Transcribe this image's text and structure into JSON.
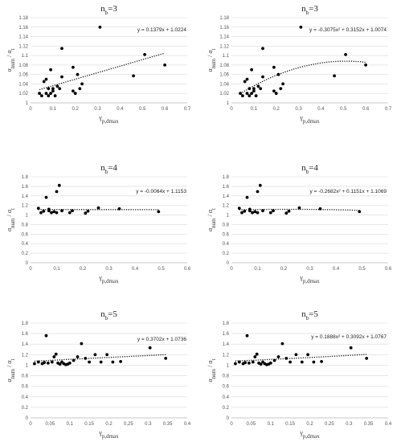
{
  "chart_data": [
    {
      "type": "scatter",
      "title": "n",
      "title_sub": "b",
      "title_rest": "=3",
      "xlabel": "γ",
      "xlabel_sub": "p,dmax",
      "ylabel": "α",
      "ylabel_sub": "num",
      "ylabel_mid": " / α",
      "ylabel_sub2": "t",
      "xlim": [
        0,
        0.7
      ],
      "ylim": [
        1.0,
        1.18
      ],
      "xticks": [
        "0",
        "0.1",
        "0.2",
        "0.3",
        "0.4",
        "0.5",
        "0.6",
        "0.7"
      ],
      "yticks": [
        "1",
        "1.02",
        "1.04",
        "1.06",
        "1.08",
        "1.1",
        "1.12",
        "1.14",
        "1.16",
        "1.18"
      ],
      "trendline": {
        "type": "linear",
        "coef": [
          0.1379,
          1.0224
        ],
        "equation": "y = 0.1379x + 1.0224"
      },
      "x": [
        0.04,
        0.05,
        0.06,
        0.07,
        0.07,
        0.08,
        0.08,
        0.09,
        0.09,
        0.1,
        0.1,
        0.11,
        0.12,
        0.13,
        0.14,
        0.14,
        0.19,
        0.19,
        0.2,
        0.21,
        0.22,
        0.23,
        0.31,
        0.46,
        0.51,
        0.6
      ],
      "y": [
        1.02,
        1.015,
        1.045,
        1.05,
        1.02,
        1.03,
        1.015,
        1.07,
        1.02,
        1.03,
        1.025,
        1.015,
        1.035,
        1.03,
        1.115,
        1.055,
        1.075,
        1.025,
        1.02,
        1.06,
        1.03,
        1.04,
        1.16,
        1.057,
        1.102,
        1.08
      ]
    },
    {
      "type": "scatter",
      "title": "n",
      "title_sub": "b",
      "title_rest": "=3",
      "xlabel": "γ",
      "xlabel_sub": "p,dmax",
      "ylabel": "α",
      "ylabel_sub": "num",
      "ylabel_mid": " / α",
      "ylabel_sub2": "t",
      "xlim": [
        0,
        0.7
      ],
      "ylim": [
        1.0,
        1.18
      ],
      "xticks": [
        "0",
        "0.1",
        "0.2",
        "0.3",
        "0.4",
        "0.5",
        "0.6",
        "0.7"
      ],
      "yticks": [
        "1",
        "1.02",
        "1.04",
        "1.06",
        "1.08",
        "1.1",
        "1.12",
        "1.14",
        "1.16",
        "1.18"
      ],
      "trendline": {
        "type": "poly2",
        "coef": [
          -0.3075,
          0.3152,
          1.0074
        ],
        "equation": "y = -0.3075x² + 0.3152x + 1.0074"
      },
      "x": [
        0.04,
        0.05,
        0.06,
        0.07,
        0.07,
        0.08,
        0.08,
        0.09,
        0.09,
        0.1,
        0.1,
        0.11,
        0.12,
        0.13,
        0.14,
        0.14,
        0.19,
        0.19,
        0.2,
        0.21,
        0.22,
        0.23,
        0.31,
        0.46,
        0.51,
        0.6
      ],
      "y": [
        1.02,
        1.015,
        1.045,
        1.05,
        1.02,
        1.03,
        1.015,
        1.07,
        1.02,
        1.03,
        1.025,
        1.015,
        1.035,
        1.03,
        1.115,
        1.055,
        1.075,
        1.025,
        1.02,
        1.06,
        1.03,
        1.04,
        1.16,
        1.057,
        1.102,
        1.08
      ]
    },
    {
      "type": "scatter",
      "title": "n",
      "title_sub": "b",
      "title_rest": "=4",
      "xlabel": "γ",
      "xlabel_sub": "p,dmax",
      "ylabel": "α",
      "ylabel_sub": "num",
      "ylabel_mid": " / α",
      "ylabel_sub2": "t",
      "xlim": [
        0,
        0.6
      ],
      "ylim": [
        0,
        1.8
      ],
      "xticks": [
        "0",
        "0.1",
        "0.2",
        "0.3",
        "0.4",
        "0.5",
        "0.6"
      ],
      "yticks": [
        "0",
        "0.2",
        "0.4",
        "0.6",
        "0.8",
        "1",
        "1.2",
        "1.4",
        "1.6",
        "1.8"
      ],
      "trendline": {
        "type": "linear",
        "coef": [
          -0.0064,
          1.1153
        ],
        "equation": "y = -0.0064x + 1.1153"
      },
      "x": [
        0.03,
        0.04,
        0.05,
        0.06,
        0.07,
        0.07,
        0.08,
        0.09,
        0.1,
        0.1,
        0.11,
        0.12,
        0.15,
        0.16,
        0.21,
        0.22,
        0.26,
        0.34,
        0.49
      ],
      "y": [
        1.14,
        1.05,
        1.08,
        1.37,
        1.09,
        1.12,
        1.05,
        1.07,
        1.49,
        1.05,
        1.62,
        1.09,
        1.05,
        1.09,
        1.04,
        1.08,
        1.15,
        1.13,
        1.07
      ]
    },
    {
      "type": "scatter",
      "title": "n",
      "title_sub": "b",
      "title_rest": "=4",
      "xlabel": "γ",
      "xlabel_sub": "p,dmax",
      "ylabel": "α",
      "ylabel_sub": "num",
      "ylabel_mid": " / α",
      "ylabel_sub2": "t",
      "xlim": [
        0,
        0.6
      ],
      "ylim": [
        0,
        1.8
      ],
      "xticks": [
        "0",
        "0.1",
        "0.2",
        "0.3",
        "0.4",
        "0.5",
        "0.6"
      ],
      "yticks": [
        "0",
        "0.2",
        "0.4",
        "0.6",
        "0.8",
        "1",
        "1.2",
        "1.4",
        "1.6",
        "1.8"
      ],
      "trendline": {
        "type": "poly2",
        "coef": [
          -0.2682,
          0.1151,
          1.1069
        ],
        "equation": "y = -0.2682x² + 0.1151x + 1.1069"
      },
      "x": [
        0.03,
        0.04,
        0.05,
        0.06,
        0.07,
        0.07,
        0.08,
        0.09,
        0.1,
        0.1,
        0.11,
        0.12,
        0.15,
        0.16,
        0.21,
        0.22,
        0.26,
        0.34,
        0.49
      ],
      "y": [
        1.14,
        1.05,
        1.08,
        1.37,
        1.09,
        1.12,
        1.05,
        1.07,
        1.49,
        1.05,
        1.62,
        1.09,
        1.05,
        1.09,
        1.04,
        1.08,
        1.15,
        1.13,
        1.07
      ]
    },
    {
      "type": "scatter",
      "title": "n",
      "title_sub": "b",
      "title_rest": "=5",
      "xlabel": "γ",
      "xlabel_sub": "p,dmax",
      "ylabel": "α",
      "ylabel_sub": "num",
      "ylabel_mid": " / α",
      "ylabel_sub2": "t",
      "xlim": [
        0,
        0.4
      ],
      "ylim": [
        0,
        1.8
      ],
      "xticks": [
        "0",
        "0.05",
        "0.1",
        "0.15",
        "0.2",
        "0.25",
        "0.3",
        "0.35",
        "0.4"
      ],
      "yticks": [
        "0",
        "0.2",
        "0.4",
        "0.6",
        "0.8",
        "1",
        "1.2",
        "1.4",
        "1.6",
        "1.8"
      ],
      "trendline": {
        "type": "linear",
        "coef": [
          0.3702,
          1.0736
        ],
        "equation": "y = 0.3702x + 1.0736"
      },
      "x": [
        0.01,
        0.02,
        0.03,
        0.035,
        0.04,
        0.045,
        0.055,
        0.06,
        0.065,
        0.07,
        0.075,
        0.08,
        0.085,
        0.09,
        0.095,
        0.1,
        0.11,
        0.12,
        0.13,
        0.14,
        0.15,
        0.165,
        0.18,
        0.195,
        0.21,
        0.23,
        0.305,
        0.345
      ],
      "y": [
        1.03,
        1.06,
        1.03,
        1.05,
        1.56,
        1.04,
        1.06,
        1.16,
        1.21,
        1.04,
        1.02,
        1.06,
        1.03,
        1.01,
        1.02,
        1.04,
        1.09,
        1.16,
        1.41,
        1.13,
        1.06,
        1.2,
        1.06,
        1.2,
        1.06,
        1.07,
        1.33,
        1.13
      ]
    },
    {
      "type": "scatter",
      "title": "n",
      "title_sub": "b",
      "title_rest": "=5",
      "xlabel": "γ",
      "xlabel_sub": "p,dmax",
      "ylabel": "α",
      "ylabel_sub": "num",
      "ylabel_mid": " / α",
      "ylabel_sub2": "t",
      "xlim": [
        0,
        0.4
      ],
      "ylim": [
        0,
        1.8
      ],
      "xticks": [
        "0",
        "0.05",
        "0.1",
        "0.15",
        "0.2",
        "0.25",
        "0.3",
        "0.35",
        "0.4"
      ],
      "yticks": [
        "0",
        "0.2",
        "0.4",
        "0.6",
        "0.8",
        "1",
        "1.2",
        "1.4",
        "1.6",
        "1.8"
      ],
      "trendline": {
        "type": "poly2",
        "coef": [
          0.1888,
          0.3092,
          1.0767
        ],
        "equation": "y = 0.1888x² + 0.3092x + 1.0767"
      },
      "x": [
        0.01,
        0.02,
        0.03,
        0.035,
        0.04,
        0.045,
        0.055,
        0.06,
        0.065,
        0.07,
        0.075,
        0.08,
        0.085,
        0.09,
        0.095,
        0.1,
        0.11,
        0.12,
        0.13,
        0.14,
        0.15,
        0.165,
        0.18,
        0.195,
        0.21,
        0.23,
        0.305,
        0.345
      ],
      "y": [
        1.03,
        1.06,
        1.03,
        1.05,
        1.56,
        1.04,
        1.06,
        1.16,
        1.21,
        1.04,
        1.02,
        1.06,
        1.03,
        1.01,
        1.02,
        1.04,
        1.09,
        1.16,
        1.41,
        1.13,
        1.06,
        1.2,
        1.06,
        1.2,
        1.06,
        1.07,
        1.33,
        1.13
      ]
    }
  ]
}
